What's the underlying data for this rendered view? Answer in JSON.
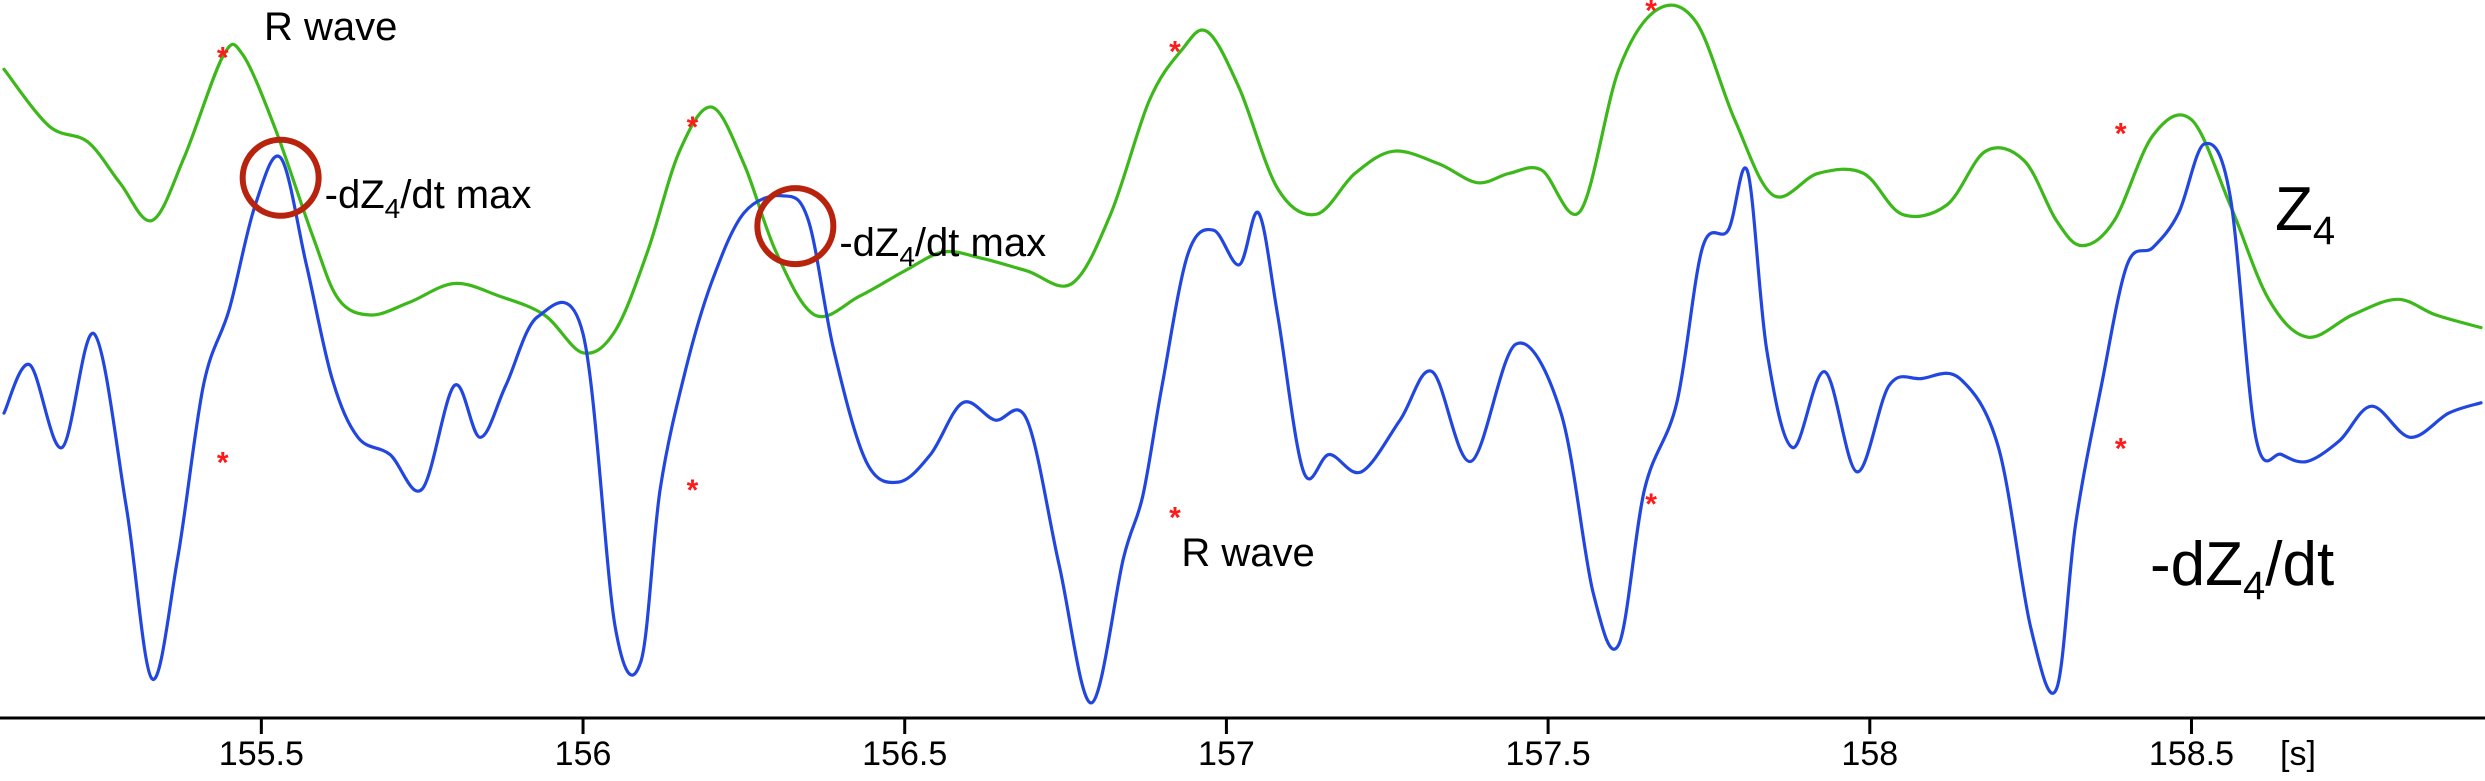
{
  "chart_data": {
    "type": "line",
    "xlabel": "[s]",
    "xlim": [
      155.1,
      158.95
    ],
    "xticks": [
      155.5,
      156,
      156.5,
      157,
      157.5,
      158,
      158.5
    ],
    "xtick_labels": [
      "155.5",
      "156",
      "156.5",
      "157",
      "157.5",
      "158",
      "158.5"
    ],
    "grid": false,
    "colors": {
      "Z4": "#3cb81a",
      "dZ4": "#2247e0",
      "marker": "#ff1a1a",
      "circle": "#b8230e"
    },
    "series": [
      {
        "name": "Z4",
        "label_text": "Z",
        "label_sub": "4",
        "x": [
          155.1,
          155.17,
          155.23,
          155.28,
          155.33,
          155.38,
          155.44,
          155.47,
          155.52,
          155.58,
          155.62,
          155.67,
          155.73,
          155.8,
          155.87,
          155.94,
          156,
          156.05,
          156.1,
          156.15,
          156.2,
          156.25,
          156.3,
          156.36,
          156.43,
          156.5,
          156.56,
          156.62,
          156.69,
          156.76,
          156.82,
          156.88,
          156.93,
          156.97,
          157.02,
          157.08,
          157.14,
          157.2,
          157.26,
          157.33,
          157.39,
          157.44,
          157.49,
          157.55,
          157.61,
          157.67,
          157.73,
          157.79,
          157.85,
          157.92,
          157.99,
          158.05,
          158.12,
          158.18,
          158.24,
          158.29,
          158.33,
          158.38,
          158.44,
          158.5,
          158.56,
          158.62,
          158.68,
          158.75,
          158.82,
          158.88,
          158.95
        ],
        "y": [
          0.78,
          0.6,
          0.55,
          0.42,
          0.3,
          0.5,
          0.82,
          0.83,
          0.6,
          0.25,
          0.05,
          0.0,
          0.04,
          0.1,
          0.06,
          0.0,
          -0.12,
          -0.05,
          0.2,
          0.52,
          0.66,
          0.48,
          0.2,
          0.0,
          0.06,
          0.14,
          0.2,
          0.18,
          0.14,
          0.1,
          0.32,
          0.68,
          0.84,
          0.9,
          0.72,
          0.4,
          0.32,
          0.45,
          0.52,
          0.48,
          0.42,
          0.45,
          0.46,
          0.33,
          0.78,
          0.97,
          0.93,
          0.62,
          0.38,
          0.45,
          0.45,
          0.32,
          0.35,
          0.52,
          0.49,
          0.3,
          0.22,
          0.3,
          0.57,
          0.62,
          0.35,
          0.05,
          -0.07,
          0.0,
          0.05,
          0.0,
          -0.04
        ],
        "markers": [
          [
            155.44,
            0.82
          ],
          [
            156.17,
            0.6
          ],
          [
            156.92,
            0.84
          ],
          [
            157.66,
            0.97
          ],
          [
            158.39,
            0.58
          ]
        ]
      },
      {
        "name": "-dZ4/dt",
        "label_text": "-dZ",
        "label_sub": "4",
        "label_suffix": "/dt",
        "x": [
          155.1,
          155.14,
          155.19,
          155.24,
          155.29,
          155.33,
          155.37,
          155.41,
          155.45,
          155.49,
          155.53,
          155.57,
          155.61,
          155.65,
          155.7,
          155.75,
          155.8,
          155.84,
          155.88,
          155.93,
          156,
          156.05,
          156.09,
          156.12,
          156.16,
          156.2,
          156.25,
          156.31,
          156.35,
          156.39,
          156.44,
          156.49,
          156.54,
          156.59,
          156.64,
          156.69,
          156.74,
          156.79,
          156.84,
          156.87,
          156.9,
          156.94,
          156.98,
          157.02,
          157.05,
          157.08,
          157.12,
          157.16,
          157.21,
          157.27,
          157.32,
          157.38,
          157.45,
          157.52,
          157.57,
          157.61,
          157.65,
          157.7,
          157.74,
          157.78,
          157.81,
          157.84,
          157.88,
          157.93,
          157.98,
          158.03,
          158.08,
          158.14,
          158.2,
          158.25,
          158.29,
          158.32,
          158.36,
          158.4,
          158.44,
          158.48,
          158.52,
          158.56,
          158.6,
          158.64,
          158.68,
          158.73,
          158.78,
          158.84,
          158.9,
          158.95
        ],
        "y": [
          0.02,
          0.16,
          -0.08,
          0.25,
          -0.25,
          -0.75,
          -0.4,
          0.1,
          0.32,
          0.62,
          0.76,
          0.45,
          0.12,
          -0.05,
          -0.1,
          -0.2,
          0.1,
          -0.05,
          0.1,
          0.3,
          0.25,
          -0.6,
          -0.7,
          -0.2,
          0.15,
          0.4,
          0.6,
          0.65,
          0.58,
          0.2,
          -0.12,
          -0.18,
          -0.1,
          0.05,
          0.0,
          0.0,
          -0.42,
          -0.82,
          -0.4,
          -0.22,
          0.1,
          0.48,
          0.55,
          0.45,
          0.6,
          0.3,
          -0.15,
          -0.1,
          -0.15,
          0.0,
          0.14,
          -0.12,
          0.22,
          0.02,
          -0.5,
          -0.65,
          -0.2,
          0.05,
          0.5,
          0.55,
          0.72,
          0.2,
          -0.08,
          0.14,
          -0.15,
          0.1,
          0.12,
          0.12,
          -0.08,
          -0.6,
          -0.78,
          -0.3,
          0.1,
          0.45,
          0.5,
          0.6,
          0.8,
          0.65,
          -0.05,
          -0.1,
          -0.12,
          -0.06,
          0.04,
          -0.05,
          0.02,
          0.05
        ],
        "markers": [
          [
            155.44,
            -0.12
          ],
          [
            156.17,
            -0.2
          ],
          [
            156.92,
            -0.28
          ],
          [
            157.66,
            -0.24
          ],
          [
            158.39,
            -0.08
          ]
        ]
      }
    ],
    "annotations": [
      {
        "text": "R wave",
        "x": 155.47,
        "series": "Z4"
      },
      {
        "text": "R wave",
        "x": 156.93,
        "series": "-dZ4/dt"
      }
    ],
    "max_annotations": [
      {
        "x": 155.53,
        "y": 0.76,
        "prefix": "-dZ",
        "sub": "4",
        "suffix": "/dt max"
      },
      {
        "x": 156.33,
        "y": 0.62,
        "prefix": "-dZ",
        "sub": "4",
        "suffix": "/dt max"
      }
    ]
  }
}
